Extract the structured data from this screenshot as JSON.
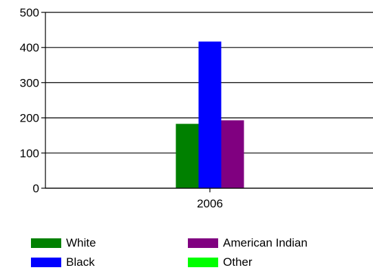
{
  "chart_data": {
    "type": "bar",
    "categories": [
      "2006"
    ],
    "series": [
      {
        "name": "White",
        "values": [
          183
        ],
        "color": "#008000"
      },
      {
        "name": "Black",
        "values": [
          417
        ],
        "color": "#0000ff"
      },
      {
        "name": "American Indian",
        "values": [
          193
        ],
        "color": "#800080"
      },
      {
        "name": "Other",
        "values": [
          0
        ],
        "color": "#00ff00"
      }
    ],
    "ylim": [
      0,
      500
    ],
    "yticks": [
      0,
      100,
      200,
      300,
      400,
      500
    ],
    "grid": true,
    "legend_position": "bottom"
  }
}
